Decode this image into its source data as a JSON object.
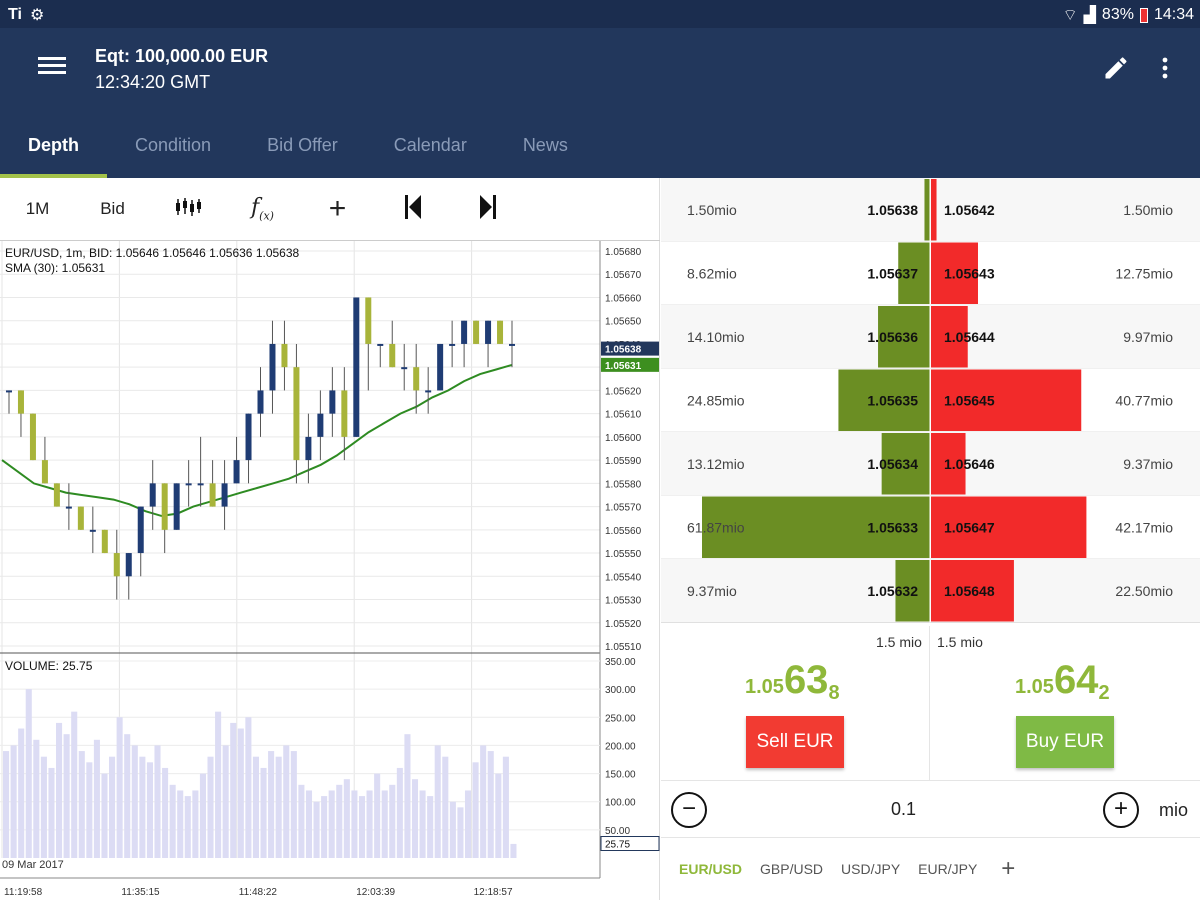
{
  "status": {
    "left": "Ti",
    "battery": "83%",
    "time": "14:34"
  },
  "header": {
    "equity": "Eqt: 100,000.00 EUR",
    "time": "12:34:20 GMT"
  },
  "tabs": [
    "Depth",
    "Condition",
    "Bid Offer",
    "Calendar",
    "News"
  ],
  "active_tab": "Depth",
  "toolbar": {
    "timeframe": "1M",
    "price_type": "Bid"
  },
  "chart_info": {
    "line1": "EUR/USD, 1m, BID: 1.05646 1.05646 1.05636 1.05638",
    "line2": "SMA (30): 1.05631",
    "volume": "VOLUME: 25.75",
    "date": "09 Mar 2017"
  },
  "chart_data": [
    {
      "type": "candlestick",
      "title": "EUR/USD, 1m, BID: 1.05646 1.05646 1.05636 1.05638",
      "ylim": [
        1.0551,
        1.0568
      ],
      "yticks": [
        "1.05680",
        "1.05670",
        "1.05660",
        "1.05650",
        "1.05640",
        "1.05630",
        "1.05620",
        "1.05610",
        "1.05600",
        "1.05590",
        "1.05580",
        "1.05570",
        "1.05560",
        "1.05550",
        "1.05540",
        "1.05530",
        "1.05520",
        "1.05510"
      ],
      "xticks": [
        "11:19:58",
        "11:35:15",
        "11:48:22",
        "12:03:39",
        "12:18:57"
      ],
      "price_tags": [
        {
          "value": "1.05638",
          "color": "#22375c"
        },
        {
          "value": "1.05631",
          "color": "#3d8f1f"
        }
      ],
      "candles": [
        [
          1.0562,
          1.0562,
          1.0561,
          1.0562
        ],
        [
          1.0562,
          1.0562,
          1.056,
          1.0561
        ],
        [
          1.0561,
          1.0561,
          1.0559,
          1.0559
        ],
        [
          1.0559,
          1.056,
          1.0558,
          1.0558
        ],
        [
          1.0558,
          1.0558,
          1.0557,
          1.0557
        ],
        [
          1.0557,
          1.0558,
          1.0556,
          1.0557
        ],
        [
          1.0557,
          1.0557,
          1.0556,
          1.0556
        ],
        [
          1.0556,
          1.0557,
          1.0555,
          1.0556
        ],
        [
          1.0556,
          1.0556,
          1.0555,
          1.0555
        ],
        [
          1.0555,
          1.0556,
          1.0553,
          1.0554
        ],
        [
          1.0554,
          1.0555,
          1.0553,
          1.0555
        ],
        [
          1.0555,
          1.0557,
          1.0554,
          1.0557
        ],
        [
          1.0557,
          1.0559,
          1.0556,
          1.0558
        ],
        [
          1.0558,
          1.0558,
          1.0555,
          1.0556
        ],
        [
          1.0556,
          1.0558,
          1.0556,
          1.0558
        ],
        [
          1.0558,
          1.0559,
          1.0557,
          1.0558
        ],
        [
          1.0558,
          1.056,
          1.0557,
          1.0558
        ],
        [
          1.0558,
          1.0559,
          1.0557,
          1.0557
        ],
        [
          1.0557,
          1.0559,
          1.0556,
          1.0558
        ],
        [
          1.0558,
          1.056,
          1.0558,
          1.0559
        ],
        [
          1.0559,
          1.0561,
          1.0558,
          1.0561
        ],
        [
          1.0561,
          1.0563,
          1.056,
          1.0562
        ],
        [
          1.0562,
          1.0565,
          1.0561,
          1.0564
        ],
        [
          1.0564,
          1.0565,
          1.0562,
          1.0563
        ],
        [
          1.0563,
          1.0564,
          1.0558,
          1.0559
        ],
        [
          1.0559,
          1.0561,
          1.0558,
          1.056
        ],
        [
          1.056,
          1.0562,
          1.0559,
          1.0561
        ],
        [
          1.0561,
          1.0563,
          1.056,
          1.0562
        ],
        [
          1.0562,
          1.0563,
          1.0559,
          1.056
        ],
        [
          1.056,
          1.0566,
          1.056,
          1.0566
        ],
        [
          1.0566,
          1.0566,
          1.0562,
          1.0564
        ],
        [
          1.0564,
          1.0564,
          1.0563,
          1.0564
        ],
        [
          1.0564,
          1.0565,
          1.0563,
          1.0563
        ],
        [
          1.0563,
          1.0564,
          1.0562,
          1.0563
        ],
        [
          1.0563,
          1.0564,
          1.0561,
          1.0562
        ],
        [
          1.0562,
          1.0563,
          1.0561,
          1.0562
        ],
        [
          1.0562,
          1.0564,
          1.0562,
          1.0564
        ],
        [
          1.0564,
          1.0565,
          1.0563,
          1.0564
        ],
        [
          1.0564,
          1.0565,
          1.0563,
          1.0565
        ],
        [
          1.0565,
          1.0565,
          1.0564,
          1.0564
        ],
        [
          1.0564,
          1.0565,
          1.0563,
          1.0565
        ],
        [
          1.0565,
          1.0565,
          1.0564,
          1.0564
        ],
        [
          1.0564,
          1.0565,
          1.0563,
          1.0564
        ]
      ],
      "sma_series": [
        1.0559,
        1.05585,
        1.0558,
        1.05578,
        1.05576,
        1.05575,
        1.05574,
        1.05573,
        1.05571,
        1.05568,
        1.05566,
        1.05567,
        1.0557,
        1.05572,
        1.05574,
        1.05576,
        1.05578,
        1.0558,
        1.05582,
        1.05585,
        1.05588,
        1.05592,
        1.05597,
        1.05602,
        1.05606,
        1.0561,
        1.05613,
        1.05617,
        1.0562,
        1.05624,
        1.05627,
        1.05629,
        1.05631
      ]
    },
    {
      "type": "bar",
      "title": "VOLUME: 25.75",
      "ylim": [
        0,
        350
      ],
      "yticks": [
        "350.00",
        "300.00",
        "250.00",
        "200.00",
        "150.00",
        "100.00",
        "50.00"
      ],
      "current_tag": "25.75",
      "values": [
        190,
        200,
        230,
        300,
        210,
        180,
        160,
        240,
        220,
        260,
        190,
        170,
        210,
        150,
        180,
        250,
        220,
        200,
        180,
        170,
        200,
        160,
        130,
        120,
        110,
        120,
        150,
        180,
        260,
        200,
        240,
        230,
        250,
        180,
        160,
        190,
        180,
        200,
        190,
        130,
        120,
        100,
        110,
        120,
        130,
        140,
        120,
        110,
        120,
        150,
        120,
        130,
        160,
        220,
        140,
        120,
        110,
        200,
        180,
        100,
        90,
        120,
        170,
        200,
        190,
        150,
        180,
        25
      ]
    }
  ],
  "depth": {
    "rows": [
      {
        "bid_qty": "1.50mio",
        "bid": "1.05638",
        "ask": "1.05642",
        "ask_qty": "1.50mio",
        "bid_val": 1.5,
        "ask_val": 1.5
      },
      {
        "bid_qty": "8.62mio",
        "bid": "1.05637",
        "ask": "1.05643",
        "ask_qty": "12.75mio",
        "bid_val": 8.62,
        "ask_val": 12.75
      },
      {
        "bid_qty": "14.10mio",
        "bid": "1.05636",
        "ask": "1.05644",
        "ask_qty": "9.97mio",
        "bid_val": 14.1,
        "ask_val": 9.97
      },
      {
        "bid_qty": "24.85mio",
        "bid": "1.05635",
        "ask": "1.05645",
        "ask_qty": "40.77mio",
        "bid_val": 24.85,
        "ask_val": 40.77
      },
      {
        "bid_qty": "13.12mio",
        "bid": "1.05634",
        "ask": "1.05646",
        "ask_qty": "9.37mio",
        "bid_val": 13.12,
        "ask_val": 9.37
      },
      {
        "bid_qty": "61.87mio",
        "bid": "1.05633",
        "ask": "1.05647",
        "ask_qty": "42.17mio",
        "bid_val": 61.87,
        "ask_val": 42.17
      },
      {
        "bid_qty": "9.37mio",
        "bid": "1.05632",
        "ask": "1.05648",
        "ask_qty": "22.50mio",
        "bid_val": 9.37,
        "ask_val": 22.5
      }
    ],
    "bid_total": "1.5 mio",
    "ask_total": "1.5 mio"
  },
  "sell": {
    "small": "1.05",
    "big": "63",
    "tiny": "8",
    "label": "Sell EUR",
    "color": "#f23b32"
  },
  "buy": {
    "small": "1.05",
    "big": "64",
    "tiny": "2",
    "label": "Buy EUR",
    "color": "#7fba45"
  },
  "quantity": {
    "value": "0.1",
    "unit": "mio"
  },
  "pairs": [
    "EUR/USD",
    "GBP/USD",
    "USD/JPY",
    "EUR/JPY"
  ],
  "active_pair": "EUR/USD",
  "colors": {
    "header": "#22375c",
    "bid_bar": "#6b8e23",
    "ask_bar": "#f22a2a",
    "accent": "#a3c24a"
  }
}
